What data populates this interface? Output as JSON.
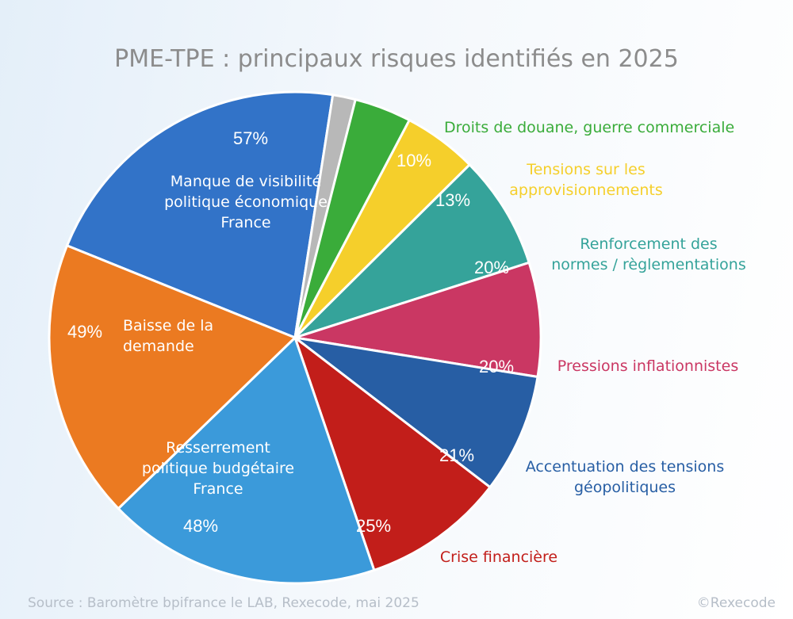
{
  "title": "PME-TPE : principaux risques identifiés en 2025",
  "footer": {
    "source": "Source : Baromètre bpifrance le LAB, Rexecode, mai 2025",
    "copyright": "©Rexecode"
  },
  "chart_data": {
    "type": "pie",
    "title": "PME-TPE : principaux risques identifiés en 2025",
    "slices": [
      {
        "label": "Manque de visibilité politique économique France",
        "value": 57,
        "pct": "57%",
        "color": "#3273c8",
        "label_position": "inside"
      },
      {
        "label": "",
        "value": 4,
        "pct": "",
        "color": "#b8b8b8",
        "label_position": "none"
      },
      {
        "label": "Droits de douane, guerre commerciale",
        "value": 10,
        "pct": "10%",
        "color": "#3aac3a",
        "label_position": "outside"
      },
      {
        "label": "Tensions sur les approvisionnements",
        "value": 13,
        "pct": "13%",
        "color": "#f5cf2b",
        "label_position": "outside"
      },
      {
        "label": "Renforcement des normes / règlementations",
        "value": 20,
        "pct": "20%",
        "color": "#35a39a",
        "label_position": "outside"
      },
      {
        "label": "Pressions inflationnistes",
        "value": 20,
        "pct": "20%",
        "color": "#ca3763",
        "label_position": "outside"
      },
      {
        "label": "Accentuation des tensions géopolitiques",
        "value": 21,
        "pct": "21%",
        "color": "#275ea4",
        "label_position": "outside"
      },
      {
        "label": "Crise financière",
        "value": 25,
        "pct": "25%",
        "color": "#c21e1a",
        "label_position": "outside"
      },
      {
        "label": "Resserrement politique budgétaire France",
        "value": 48,
        "pct": "48%",
        "color": "#3b9ada",
        "label_position": "inside"
      },
      {
        "label": "Baisse de la demande",
        "value": 49,
        "pct": "49%",
        "color": "#eb7a21",
        "label_position": "inside"
      }
    ],
    "label_lines": [
      [
        "Manque de visibilité",
        "politique économique",
        "France"
      ],
      [],
      [
        "Droits de douane, guerre commerciale"
      ],
      [
        "Tensions sur les",
        "approvisionnements"
      ],
      [
        "Renforcement des",
        "normes / règlementations"
      ],
      [
        "Pressions inflationnistes"
      ],
      [
        "Accentuation des tensions",
        "géopolitiques"
      ],
      [
        "Crise financière"
      ],
      [
        "Resserrement",
        "politique budgétaire",
        "France"
      ],
      [
        "Baisse de la",
        "demande"
      ]
    ],
    "legend": "none"
  }
}
